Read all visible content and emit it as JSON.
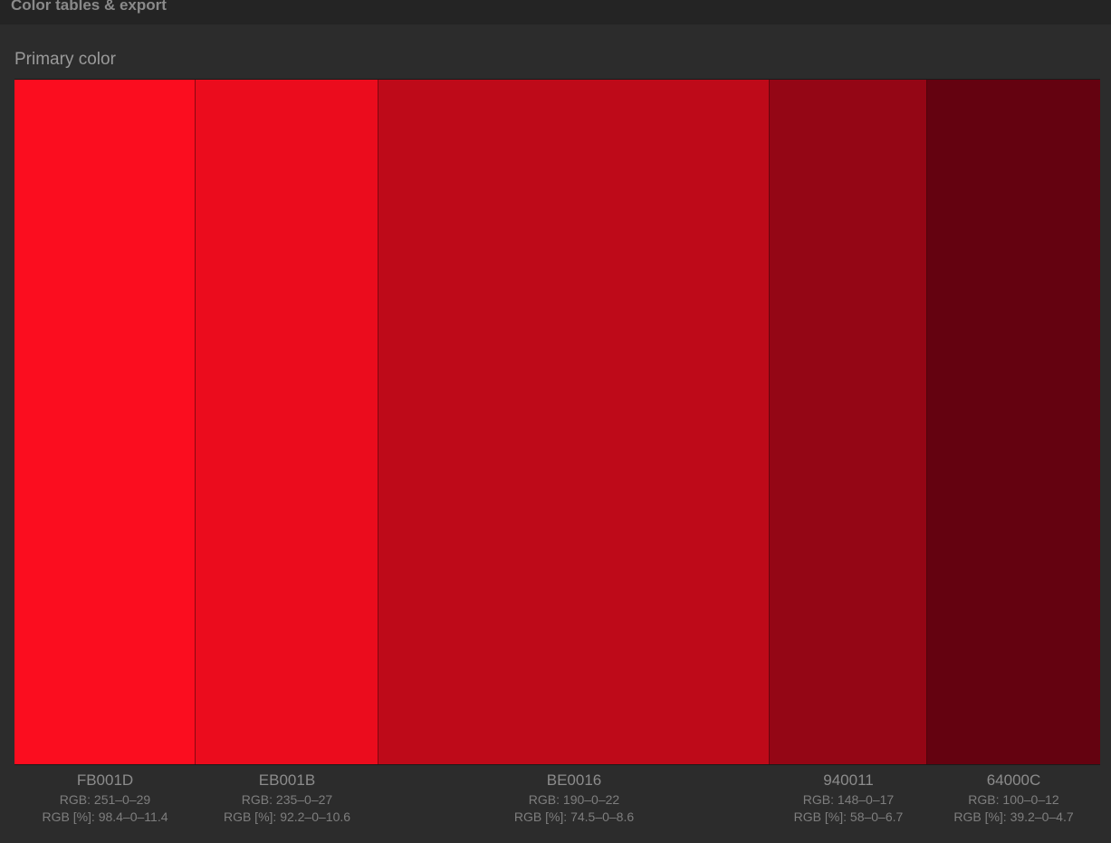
{
  "header": {
    "title": "Color tables & export"
  },
  "section": {
    "title": "Primary color"
  },
  "swatches": [
    {
      "hex": "FB001D",
      "color": "#FB0D1F",
      "rgb": "RGB: 251–0–29",
      "rgb_pct": "RGB [%]: 98.4–0–11.4"
    },
    {
      "hex": "EB001B",
      "color": "#EB0C1D",
      "rgb": "RGB: 235–0–27",
      "rgb_pct": "RGB [%]: 92.2–0–10.6"
    },
    {
      "hex": "BE0016",
      "color": "#BE0A19",
      "rgb": "RGB: 190–0–22",
      "rgb_pct": "RGB [%]: 74.5–0–8.6"
    },
    {
      "hex": "940011",
      "color": "#940615",
      "rgb": "RGB: 148–0–17",
      "rgb_pct": "RGB [%]: 58–0–6.7"
    },
    {
      "hex": "64000C",
      "color": "#640210",
      "rgb": "RGB: 100–0–12",
      "rgb_pct": "RGB [%]: 39.2–0–4.7"
    }
  ]
}
